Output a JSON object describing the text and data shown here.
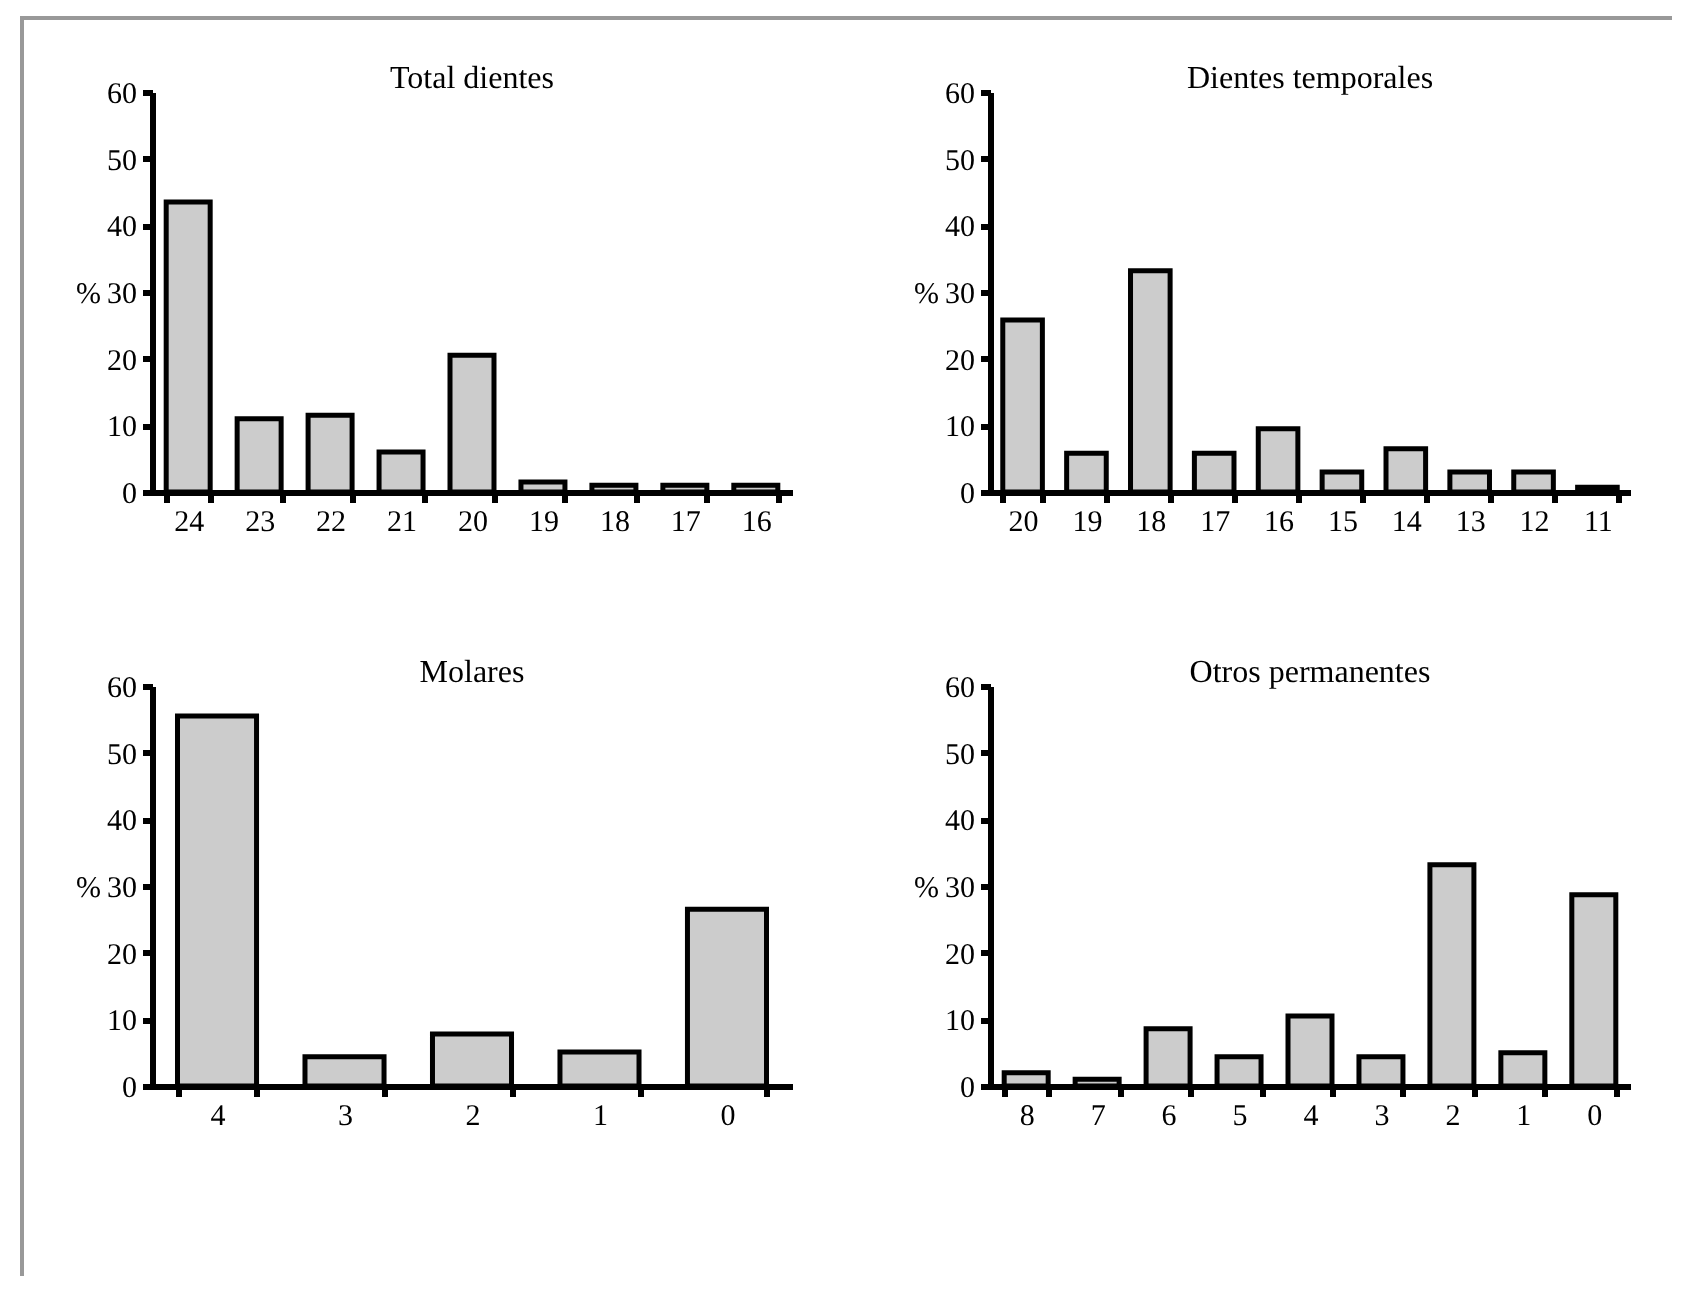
{
  "chart_data": [
    {
      "type": "bar",
      "title": "Total dientes",
      "ylabel": "%",
      "categories": [
        "24",
        "23",
        "22",
        "21",
        "20",
        "19",
        "18",
        "17",
        "16"
      ],
      "values": [
        43.5,
        11,
        11.5,
        6,
        20.5,
        1.5,
        1,
        1,
        1
      ],
      "color": "#cccccc",
      "ylim": [
        0,
        60
      ],
      "yticks": [
        0,
        10,
        20,
        30,
        40,
        50,
        60
      ],
      "grid": false
    },
    {
      "type": "bar",
      "title": "Dientes temporales",
      "ylabel": "%",
      "categories": [
        "20",
        "19",
        "18",
        "17",
        "16",
        "15",
        "14",
        "13",
        "12",
        "11"
      ],
      "values": [
        25.8,
        5.8,
        33.2,
        5.8,
        9.5,
        3,
        6.5,
        3,
        3,
        0.7
      ],
      "color": "#cccccc",
      "ylim": [
        0,
        60
      ],
      "yticks": [
        0,
        10,
        20,
        30,
        40,
        50,
        60
      ],
      "grid": false
    },
    {
      "type": "bar",
      "title": "Molares",
      "ylabel": "%",
      "categories": [
        "4",
        "3",
        "2",
        "1",
        "0"
      ],
      "values": [
        55.5,
        4.4,
        7.8,
        5.1,
        26.5
      ],
      "color": "#cccccc",
      "ylim": [
        0,
        60
      ],
      "yticks": [
        0,
        10,
        20,
        30,
        40,
        50,
        60
      ],
      "grid": false
    },
    {
      "type": "bar",
      "title": "Otros permanentes",
      "ylabel": "%",
      "categories": [
        "8",
        "7",
        "6",
        "5",
        "4",
        "3",
        "2",
        "1",
        "0"
      ],
      "values": [
        2,
        1,
        8.6,
        4.4,
        10.5,
        4.4,
        33.2,
        5,
        28.7
      ],
      "color": "#cccccc",
      "ylim": [
        0,
        60
      ],
      "yticks": [
        0,
        10,
        20,
        30,
        40,
        50,
        60
      ],
      "grid": false
    }
  ]
}
